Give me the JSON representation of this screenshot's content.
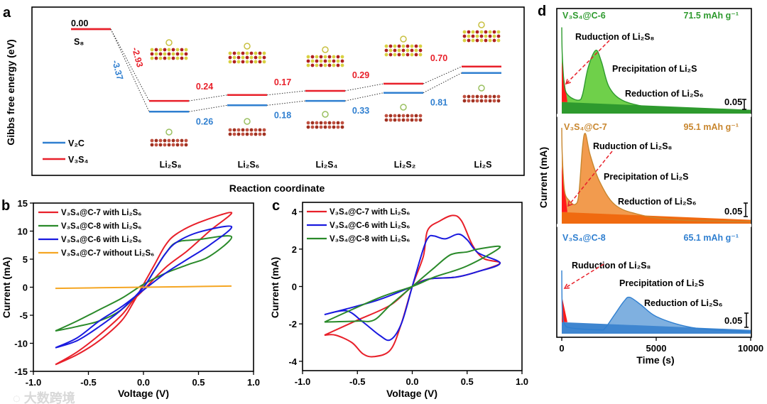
{
  "figure_labels": {
    "a": "a",
    "b": "b",
    "c": "c",
    "d": "d"
  },
  "watermark": "大数跨境",
  "chart_data": [
    {
      "panel": "a",
      "type": "line",
      "title": "",
      "xlabel": "Reaction coordinate",
      "ylabel": "Gibbs free energy (eV)",
      "categories": [
        "S₈",
        "Li₂S₈",
        "Li₂S₆",
        "Li₂S₄",
        "Li₂S₂",
        "Li₂S"
      ],
      "start_label": "0.00",
      "legend_position": "bottom-left",
      "series": [
        {
          "name": "V₂C",
          "color": "#2f7fd0",
          "values": [
            0,
            -3.37,
            -3.11,
            -2.93,
            -2.6,
            -1.79
          ],
          "step_labels": [
            "-3.37",
            "0.26",
            "0.18",
            "0.33",
            "0.81"
          ]
        },
        {
          "name": "V₃S₄",
          "color": "#e8202a",
          "values": [
            0,
            -2.93,
            -2.69,
            -2.52,
            -2.23,
            -1.53
          ],
          "step_labels": [
            "-2.93",
            "0.24",
            "0.17",
            "0.29",
            "0.70"
          ]
        }
      ]
    },
    {
      "panel": "b",
      "type": "line",
      "xlabel": "Voltage (V)",
      "ylabel": "Current (mA)",
      "xlim": [
        -1.0,
        1.0
      ],
      "ylim": [
        -15,
        15
      ],
      "xticks": [
        "-1.0",
        "-0.5",
        "0.0",
        "0.5",
        "1.0"
      ],
      "yticks": [
        "-15",
        "-10",
        "-5",
        "0",
        "5",
        "10",
        "15"
      ],
      "legend_position": "top-left",
      "series": [
        {
          "name": "V₃S₄@C-7 with Li₂S₆",
          "color": "#e8202a",
          "points": [
            [
              -0.8,
              -13.8
            ],
            [
              -0.6,
              -12
            ],
            [
              -0.4,
              -9.5
            ],
            [
              -0.2,
              -6
            ],
            [
              -0.1,
              -3
            ],
            [
              0,
              0.5
            ],
            [
              0.1,
              4
            ],
            [
              0.2,
              7.5
            ],
            [
              0.3,
              9.5
            ],
            [
              0.5,
              11.5
            ],
            [
              0.8,
              13.3
            ],
            [
              0.6,
              10
            ],
            [
              0.4,
              6.5
            ],
            [
              0.2,
              3.5
            ],
            [
              0,
              -0.5
            ],
            [
              -0.1,
              -2.5
            ],
            [
              -0.2,
              -5
            ],
            [
              -0.4,
              -8.5
            ],
            [
              -0.6,
              -11.5
            ],
            [
              -0.8,
              -13.8
            ]
          ]
        },
        {
          "name": "V₃S₄@C-8 with Li₂S₆",
          "color": "#2a8a2a",
          "points": [
            [
              -0.8,
              -7.8
            ],
            [
              -0.6,
              -7
            ],
            [
              -0.4,
              -6
            ],
            [
              -0.2,
              -4
            ],
            [
              0,
              0
            ],
            [
              0.1,
              3
            ],
            [
              0.2,
              6
            ],
            [
              0.3,
              8
            ],
            [
              0.5,
              8.5
            ],
            [
              0.8,
              9
            ],
            [
              0.6,
              5.5
            ],
            [
              0.4,
              4
            ],
            [
              0.2,
              2.5
            ],
            [
              0,
              0.5
            ],
            [
              -0.2,
              -2
            ],
            [
              -0.4,
              -4
            ],
            [
              -0.6,
              -6
            ],
            [
              -0.8,
              -7.8
            ]
          ]
        },
        {
          "name": "V₃S₄@C-6 with Li₂S₆",
          "color": "#1a1adf",
          "points": [
            [
              -0.8,
              -10.8
            ],
            [
              -0.6,
              -9.5
            ],
            [
              -0.4,
              -7
            ],
            [
              -0.2,
              -4
            ],
            [
              0,
              0
            ],
            [
              0.1,
              3
            ],
            [
              0.2,
              6
            ],
            [
              0.3,
              8
            ],
            [
              0.5,
              9.8
            ],
            [
              0.8,
              10.8
            ],
            [
              0.6,
              7.5
            ],
            [
              0.4,
              5
            ],
            [
              0.2,
              2.5
            ],
            [
              0,
              -0.5
            ],
            [
              -0.2,
              -3.5
            ],
            [
              -0.4,
              -6
            ],
            [
              -0.6,
              -9
            ],
            [
              -0.8,
              -10.8
            ]
          ]
        },
        {
          "name": "V₃S₄@C-7 without Li₂S₆",
          "color": "#f5a623",
          "points": [
            [
              -0.8,
              -0.2
            ],
            [
              -0.4,
              -0.1
            ],
            [
              0,
              0
            ],
            [
              0.4,
              0.1
            ],
            [
              0.8,
              0.2
            ]
          ]
        }
      ]
    },
    {
      "panel": "c",
      "type": "line",
      "xlabel": "Voltage (V)",
      "ylabel": "Current (mA)",
      "xlim": [
        -1.0,
        1.0
      ],
      "ylim": [
        -4.5,
        4.5
      ],
      "xticks": [
        "-1.0",
        "-0.5",
        "0.0",
        "0.5",
        "1.0"
      ],
      "yticks": [
        "-4",
        "-2",
        "0",
        "2",
        "4"
      ],
      "legend_position": "top-left",
      "series": [
        {
          "name": "V₃S₄@C-7 with Li₂S₆",
          "color": "#e8202a",
          "points": [
            [
              -0.8,
              -2.6
            ],
            [
              -0.7,
              -2.6
            ],
            [
              -0.55,
              -3
            ],
            [
              -0.45,
              -3.6
            ],
            [
              -0.35,
              -3.75
            ],
            [
              -0.2,
              -3.4
            ],
            [
              -0.1,
              -2
            ],
            [
              0,
              0
            ],
            [
              0.1,
              1.6
            ],
            [
              0.14,
              3
            ],
            [
              0.25,
              3.5
            ],
            [
              0.37,
              3.8
            ],
            [
              0.45,
              3.5
            ],
            [
              0.55,
              2.2
            ],
            [
              0.65,
              1.5
            ],
            [
              0.8,
              1.25
            ],
            [
              0.6,
              0.8
            ],
            [
              0.4,
              0.5
            ],
            [
              0.15,
              0.4
            ],
            [
              0,
              0
            ],
            [
              -0.2,
              -1
            ],
            [
              -0.5,
              -1.8
            ],
            [
              -0.8,
              -2.6
            ]
          ]
        },
        {
          "name": "V₃S₄@C-6 with Li₂S₆",
          "color": "#1a1adf",
          "points": [
            [
              -0.8,
              -1.5
            ],
            [
              -0.6,
              -1.3
            ],
            [
              -0.45,
              -1.9
            ],
            [
              -0.3,
              -2.6
            ],
            [
              -0.2,
              -2.85
            ],
            [
              -0.1,
              -2
            ],
            [
              0,
              0
            ],
            [
              0.1,
              2
            ],
            [
              0.15,
              2.65
            ],
            [
              0.2,
              2.7
            ],
            [
              0.3,
              2.55
            ],
            [
              0.42,
              2.8
            ],
            [
              0.5,
              2.5
            ],
            [
              0.6,
              1.8
            ],
            [
              0.8,
              1.25
            ],
            [
              0.6,
              0.8
            ],
            [
              0.4,
              0.5
            ],
            [
              0.15,
              0.4
            ],
            [
              0,
              0
            ],
            [
              -0.3,
              -0.7
            ],
            [
              -0.6,
              -1.2
            ],
            [
              -0.8,
              -1.5
            ]
          ]
        },
        {
          "name": "V₃S₄@C-8 with Li₂S₆",
          "color": "#2a8a2a",
          "points": [
            [
              -0.8,
              -1.9
            ],
            [
              -0.5,
              -1.85
            ],
            [
              -0.35,
              -1.8
            ],
            [
              -0.2,
              -1
            ],
            [
              0,
              0
            ],
            [
              0.2,
              1
            ],
            [
              0.35,
              1.7
            ],
            [
              0.5,
              1.85
            ],
            [
              0.6,
              2
            ],
            [
              0.8,
              2.1
            ],
            [
              0.5,
              1.1
            ],
            [
              0.2,
              0.5
            ],
            [
              0,
              0
            ],
            [
              -0.3,
              -0.6
            ],
            [
              -0.8,
              -1.9
            ]
          ]
        }
      ]
    },
    {
      "panel": "d",
      "type": "area",
      "xlabel": "Time (s)",
      "ylabel": "Current (mA)",
      "xlim": [
        0,
        10000
      ],
      "xticks": [
        "0",
        "5000",
        "10000"
      ],
      "scale_bar_label": "0.05",
      "annotations": {
        "reduction_s8": "Ruduction of Li₂S₈",
        "precipitation": "Precipitation of Li₂S",
        "reduction_s6": "Reduction of Li₂S₆"
      },
      "series": [
        {
          "name": "V₃S₄@C-6",
          "capacity": "71.5 mAh g⁻¹",
          "color": "#2e9a2e",
          "fill": "#6fd04a",
          "band": "#2e9a2e",
          "points": [
            [
              0,
              0.45
            ],
            [
              30,
              0.3
            ],
            [
              150,
              0.14
            ],
            [
              400,
              0.09
            ],
            [
              900,
              0.07
            ],
            [
              1100,
              0.1
            ],
            [
              1400,
              0.24
            ],
            [
              1800,
              0.33
            ],
            [
              2100,
              0.27
            ],
            [
              2500,
              0.14
            ],
            [
              3200,
              0.07
            ],
            [
              4500,
              0.035
            ],
            [
              6000,
              0.02
            ],
            [
              10000,
              0.01
            ]
          ]
        },
        {
          "name": "V₃S₄@C-7",
          "capacity": "95.1 mAh g⁻¹",
          "color": "#c8862e",
          "fill": "#f29b4e",
          "band": "#f06a10",
          "points": [
            [
              0,
              0.5
            ],
            [
              30,
              0.35
            ],
            [
              150,
              0.17
            ],
            [
              400,
              0.12
            ],
            [
              700,
              0.1
            ],
            [
              900,
              0.15
            ],
            [
              1100,
              0.4
            ],
            [
              1250,
              0.47
            ],
            [
              1500,
              0.36
            ],
            [
              2000,
              0.22
            ],
            [
              2800,
              0.1
            ],
            [
              4000,
              0.05
            ],
            [
              6000,
              0.02
            ],
            [
              10000,
              0.01
            ]
          ]
        },
        {
          "name": "V₃S₄@C-8",
          "capacity": "65.1 mAh g⁻¹",
          "color": "#2f7fd0",
          "fill": "#7fb0e0",
          "band": "#3f86d0",
          "points": [
            [
              0,
              0.33
            ],
            [
              30,
              0.12
            ],
            [
              150,
              0.05
            ],
            [
              500,
              0.03
            ],
            [
              2000,
              0.02
            ],
            [
              2300,
              0.03
            ],
            [
              2800,
              0.1
            ],
            [
              3300,
              0.17
            ],
            [
              3600,
              0.19
            ],
            [
              4200,
              0.15
            ],
            [
              5000,
              0.09
            ],
            [
              6500,
              0.04
            ],
            [
              8000,
              0.02
            ],
            [
              10000,
              0.01
            ]
          ]
        }
      ]
    }
  ]
}
